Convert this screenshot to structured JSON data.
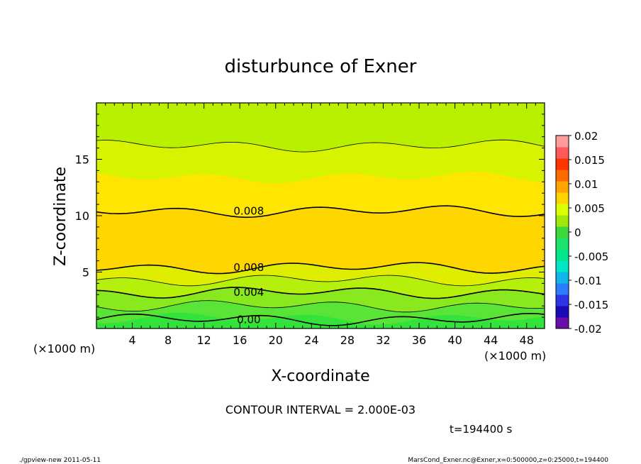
{
  "chart_data": {
    "type": "heatmap",
    "title": "disturbunce of Exner",
    "xlabel": "X-coordinate",
    "ylabel": "Z-coordinate",
    "x_unit": "(×1000 m)",
    "x_unit_right": "(×1000 m)",
    "xlim": [
      0,
      50
    ],
    "ylim": [
      0,
      20
    ],
    "x_ticks": [
      4,
      8,
      12,
      16,
      20,
      24,
      28,
      32,
      36,
      40,
      44,
      48
    ],
    "y_ticks": [
      5,
      10,
      15
    ],
    "contour_interval_text": "CONTOUR INTERVAL = 2.000E-03",
    "time_text": "t=194400 s",
    "colorbar": {
      "labels": [
        "0.02",
        "0.015",
        "0.01",
        "0.005",
        "0",
        "-0.005",
        "-0.01",
        "-0.015",
        "-0.02"
      ],
      "range": [
        -0.02,
        0.02
      ],
      "colors": [
        "#6a0dad",
        "#1a0ab8",
        "#2f34e6",
        "#2a7dff",
        "#10b6e8",
        "#00e6c6",
        "#00e88a",
        "#1ee36a",
        "#3fd83a",
        "#9ee80a",
        "#dcff00",
        "#ffd300",
        "#ffa400",
        "#ff6a00",
        "#ff3300",
        "#ff5a5a",
        "#ff9b9b"
      ]
    },
    "bands": [
      {
        "zmin": 0,
        "zmax": 0.9,
        "value": -0.001,
        "color": "#33e23a"
      },
      {
        "zmin": 0.9,
        "zmax": 2.0,
        "value": 0.001,
        "color": "#5ae437"
      },
      {
        "zmin": 2.0,
        "zmax": 3.2,
        "value": 0.003,
        "color": "#8ae81e"
      },
      {
        "zmin": 3.2,
        "zmax": 4.3,
        "value": 0.005,
        "color": "#b5f00c"
      },
      {
        "zmin": 4.3,
        "zmax": 5.4,
        "value": 0.007,
        "color": "#dfee00"
      },
      {
        "zmin": 5.4,
        "zmax": 10.4,
        "value": 0.009,
        "color": "#ffd600"
      },
      {
        "zmin": 10.4,
        "zmax": 13.4,
        "value": 0.007,
        "color": "#ffe600"
      },
      {
        "zmin": 13.4,
        "zmax": 16.2,
        "value": 0.005,
        "color": "#d7f300"
      },
      {
        "zmin": 16.2,
        "zmax": 20,
        "value": 0.003,
        "color": "#b8f000"
      }
    ],
    "contours": [
      {
        "label": "0.00",
        "z": 0.8,
        "thick": true
      },
      {
        "label": "",
        "z": 2.0,
        "thick": false
      },
      {
        "label": "0.004",
        "z": 3.2,
        "thick": true
      },
      {
        "label": "",
        "z": 4.3,
        "thick": false
      },
      {
        "label": "0.008",
        "z": 5.4,
        "thick": true
      },
      {
        "label": "0.008",
        "z": 10.4,
        "thick": true
      },
      {
        "label": "",
        "z": 16.2,
        "thick": false
      }
    ]
  },
  "footer": {
    "left": "./gpview-new   2011-05-11",
    "right": "MarsCond_Exner.nc@Exner,x=0:500000,z=0:25000,t=194400"
  }
}
